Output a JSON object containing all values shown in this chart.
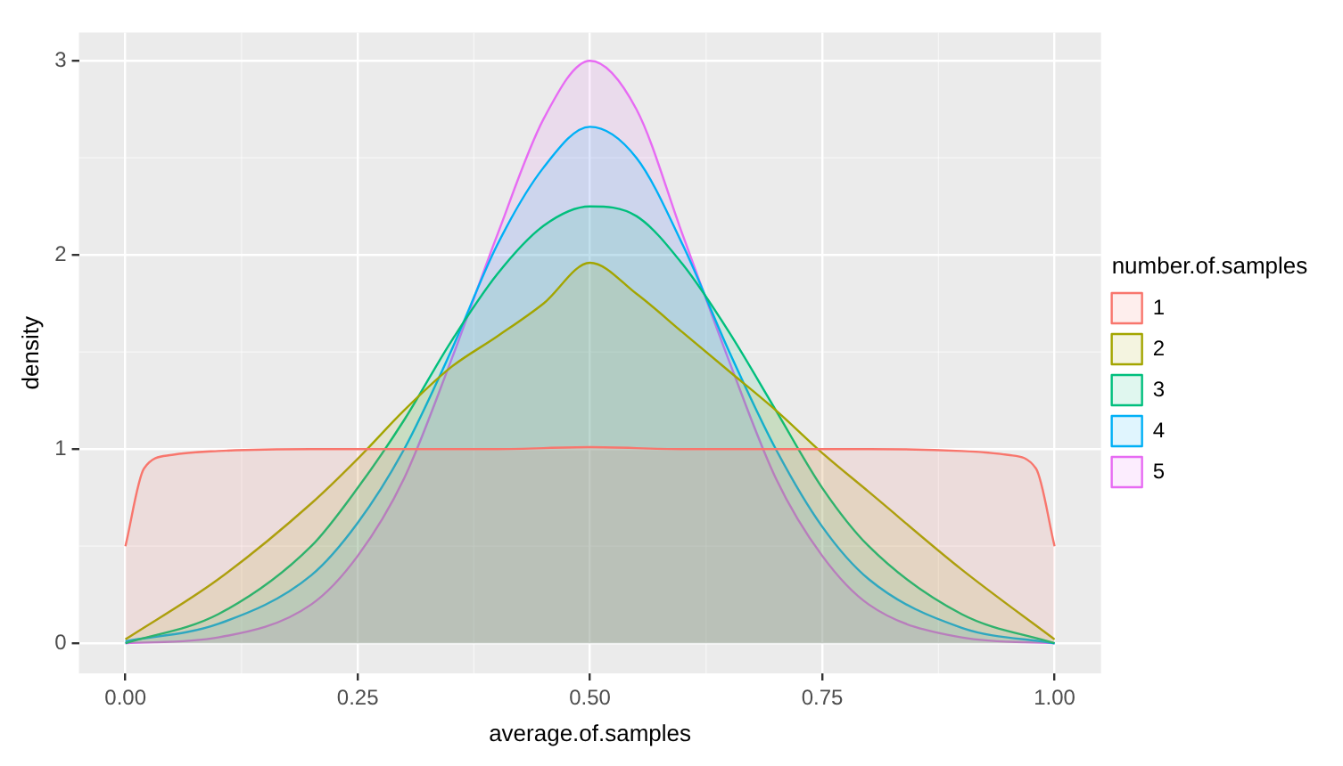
{
  "chart_data": {
    "type": "area",
    "xlabel": "average.of.samples",
    "ylabel": "density",
    "legend_title": "number.of.samples",
    "legend": "right",
    "grid": true,
    "xlim": [
      -0.05,
      1.05
    ],
    "ylim": [
      -0.155,
      3.146
    ],
    "xticks": [
      {
        "value": 0,
        "label": "0.00"
      },
      {
        "value": 0.25,
        "label": "0.25"
      },
      {
        "value": 0.5,
        "label": "0.50"
      },
      {
        "value": 0.75,
        "label": "0.75"
      },
      {
        "value": 1,
        "label": "1.00"
      }
    ],
    "yticks": [
      0,
      1,
      2,
      3
    ],
    "x": [
      0,
      0.1,
      0.2,
      0.25,
      0.3,
      0.35,
      0.4,
      0.45,
      0.5,
      0.55,
      0.6,
      0.65,
      0.7,
      0.75,
      0.8,
      0.9,
      1
    ],
    "series": [
      {
        "name": "1",
        "color": "#f8766d",
        "x": [
          0,
          0.02,
          0.05,
          0.1,
          0.2,
          0.3,
          0.4,
          0.5,
          0.6,
          0.7,
          0.8,
          0.9,
          0.95,
          0.98,
          1
        ],
        "values": [
          0.5,
          0.9,
          0.97,
          0.99,
          1.0,
          1.0,
          1.0,
          1.01,
          1.0,
          1.0,
          1.0,
          0.99,
          0.97,
          0.9,
          0.5
        ]
      },
      {
        "name": "2",
        "color": "#a3a500",
        "values": [
          0.02,
          0.33,
          0.72,
          0.95,
          1.2,
          1.42,
          1.58,
          1.75,
          1.96,
          1.8,
          1.6,
          1.4,
          1.2,
          0.98,
          0.78,
          0.38,
          0.02
        ]
      },
      {
        "name": "3",
        "color": "#00bf7d",
        "values": [
          0,
          0.15,
          0.5,
          0.8,
          1.15,
          1.55,
          1.9,
          2.15,
          2.25,
          2.2,
          1.95,
          1.6,
          1.2,
          0.8,
          0.5,
          0.15,
          0
        ]
      },
      {
        "name": "4",
        "color": "#00b0f6",
        "values": [
          0.01,
          0.1,
          0.35,
          0.62,
          1.0,
          1.5,
          2.05,
          2.45,
          2.66,
          2.5,
          2.05,
          1.5,
          1.0,
          0.6,
          0.33,
          0.08,
          0
        ]
      },
      {
        "name": "5",
        "color": "#e76bf3",
        "values": [
          0,
          0.03,
          0.2,
          0.45,
          0.85,
          1.45,
          2.1,
          2.7,
          3.0,
          2.75,
          2.1,
          1.45,
          0.85,
          0.45,
          0.2,
          0.03,
          0
        ]
      }
    ]
  }
}
